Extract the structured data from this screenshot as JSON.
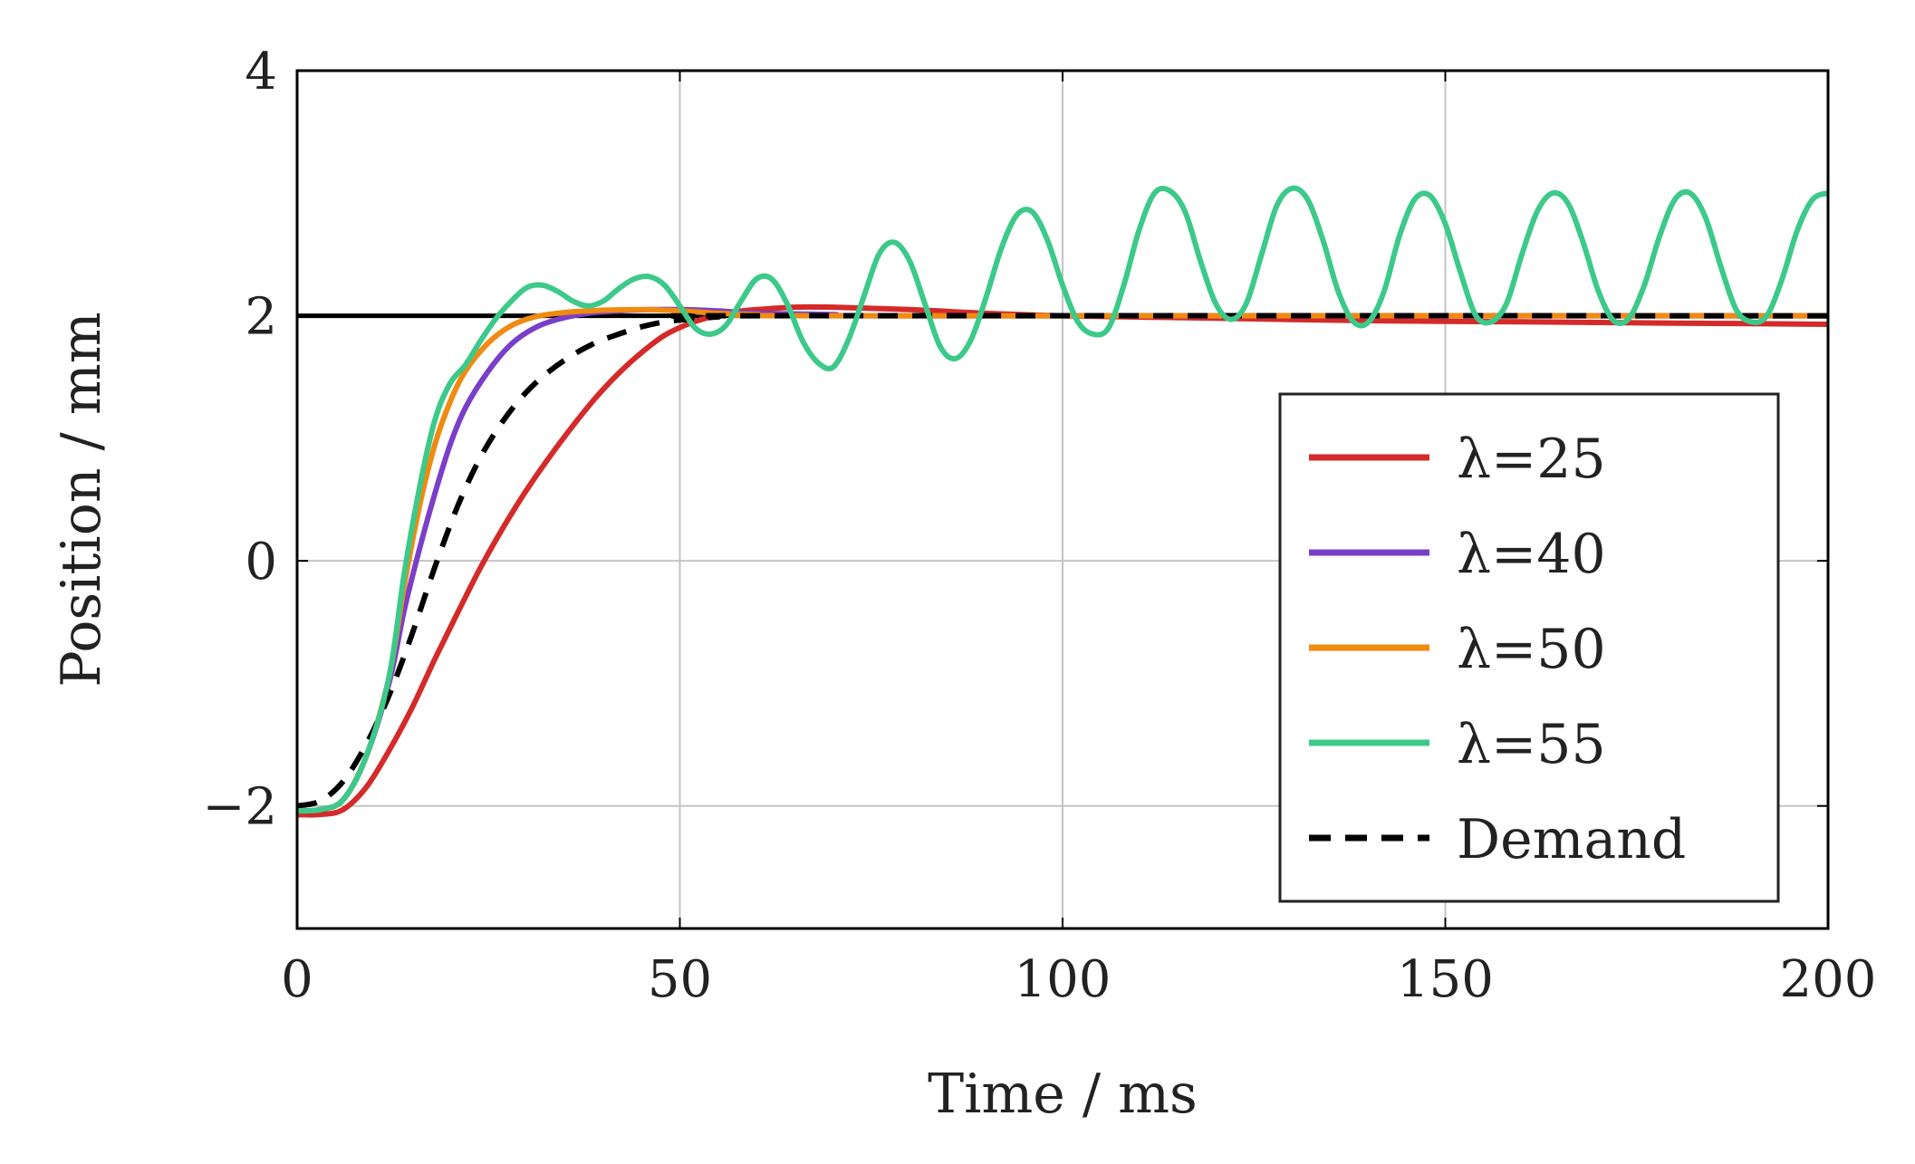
{
  "chart_data": {
    "type": "line",
    "title": "",
    "xlabel": "Time / ms",
    "ylabel": "Position / mm",
    "xlim": [
      0,
      200
    ],
    "ylim": [
      -3,
      4
    ],
    "xticks": [
      0,
      50,
      100,
      150,
      200
    ],
    "yticks": [
      -2,
      0,
      2,
      4
    ],
    "xtick_labels": [
      "0",
      "50",
      "100",
      "150",
      "200"
    ],
    "ytick_labels": [
      "−2",
      "0",
      "2",
      "4"
    ],
    "grid": true,
    "legend_position": "bottom-right",
    "reference_line": {
      "y": 2,
      "color": "#000000"
    },
    "series": [
      {
        "name": "λ=25",
        "color": "#d42a2a",
        "dash": "solid",
        "points": [
          [
            0,
            -2.07
          ],
          [
            3,
            -2.07
          ],
          [
            6,
            -2.03
          ],
          [
            9,
            -1.85
          ],
          [
            12,
            -1.55
          ],
          [
            15,
            -1.2
          ],
          [
            18,
            -0.8
          ],
          [
            21,
            -0.42
          ],
          [
            24,
            -0.05
          ],
          [
            27,
            0.28
          ],
          [
            30,
            0.58
          ],
          [
            33,
            0.85
          ],
          [
            36,
            1.1
          ],
          [
            39,
            1.33
          ],
          [
            42,
            1.53
          ],
          [
            45,
            1.7
          ],
          [
            48,
            1.84
          ],
          [
            51,
            1.93
          ],
          [
            54,
            1.99
          ],
          [
            57,
            2.03
          ],
          [
            60,
            2.05
          ],
          [
            65,
            2.07
          ],
          [
            70,
            2.07
          ],
          [
            80,
            2.05
          ],
          [
            90,
            2.02
          ],
          [
            100,
            2.0
          ],
          [
            120,
            1.98
          ],
          [
            140,
            1.96
          ],
          [
            160,
            1.95
          ],
          [
            180,
            1.94
          ],
          [
            200,
            1.93
          ]
        ]
      },
      {
        "name": "λ=40",
        "color": "#7a3fc8",
        "dash": "solid",
        "points": [
          [
            0,
            -2.04
          ],
          [
            3,
            -2.03
          ],
          [
            6,
            -1.95
          ],
          [
            9,
            -1.6
          ],
          [
            12,
            -1.0
          ],
          [
            14,
            -0.4
          ],
          [
            16,
            0.1
          ],
          [
            18,
            0.55
          ],
          [
            20,
            0.95
          ],
          [
            22,
            1.25
          ],
          [
            25,
            1.55
          ],
          [
            28,
            1.77
          ],
          [
            31,
            1.9
          ],
          [
            34,
            1.97
          ],
          [
            38,
            2.02
          ],
          [
            42,
            2.04
          ],
          [
            46,
            2.05
          ],
          [
            50,
            2.05
          ],
          [
            55,
            2.04
          ],
          [
            60,
            2.02
          ],
          [
            70,
            2.01
          ],
          [
            80,
            2.0
          ],
          [
            200,
            2.0
          ]
        ]
      },
      {
        "name": "λ=50",
        "color": "#f08a10",
        "dash": "solid",
        "points": [
          [
            0,
            -2.04
          ],
          [
            3,
            -2.03
          ],
          [
            6,
            -1.95
          ],
          [
            9,
            -1.6
          ],
          [
            12,
            -0.95
          ],
          [
            14,
            -0.2
          ],
          [
            16,
            0.45
          ],
          [
            18,
            0.95
          ],
          [
            20,
            1.3
          ],
          [
            22,
            1.55
          ],
          [
            25,
            1.78
          ],
          [
            28,
            1.92
          ],
          [
            31,
            1.99
          ],
          [
            34,
            2.02
          ],
          [
            38,
            2.04
          ],
          [
            45,
            2.05
          ],
          [
            50,
            2.04
          ],
          [
            55,
            2.02
          ],
          [
            60,
            2.01
          ],
          [
            70,
            2.0
          ],
          [
            200,
            2.0
          ]
        ]
      },
      {
        "name": "λ=55",
        "color": "#3cc98a",
        "dash": "solid",
        "points": [
          [
            0,
            -2.04
          ],
          [
            3,
            -2.03
          ],
          [
            6,
            -1.95
          ],
          [
            9,
            -1.6
          ],
          [
            12,
            -0.95
          ],
          [
            14,
            -0.1
          ],
          [
            16,
            0.6
          ],
          [
            18,
            1.15
          ],
          [
            20,
            1.45
          ],
          [
            22,
            1.6
          ],
          [
            24,
            1.8
          ],
          [
            26,
            1.98
          ],
          [
            28,
            2.12
          ],
          [
            30,
            2.23
          ],
          [
            32,
            2.25
          ],
          [
            34,
            2.2
          ],
          [
            36,
            2.12
          ],
          [
            38,
            2.08
          ],
          [
            40,
            2.12
          ],
          [
            42,
            2.22
          ],
          [
            44,
            2.3
          ],
          [
            46,
            2.32
          ],
          [
            48,
            2.25
          ],
          [
            50,
            2.08
          ],
          [
            52,
            1.9
          ],
          [
            54,
            1.85
          ],
          [
            56,
            1.92
          ],
          [
            58,
            2.12
          ],
          [
            60,
            2.3
          ],
          [
            62,
            2.3
          ],
          [
            64,
            2.1
          ],
          [
            66,
            1.8
          ],
          [
            68,
            1.62
          ],
          [
            70,
            1.58
          ],
          [
            72,
            1.8
          ],
          [
            74,
            2.15
          ],
          [
            76,
            2.5
          ],
          [
            78,
            2.6
          ],
          [
            80,
            2.45
          ],
          [
            82,
            2.1
          ],
          [
            84,
            1.75
          ],
          [
            86,
            1.65
          ],
          [
            88,
            1.8
          ],
          [
            90,
            2.15
          ],
          [
            92,
            2.55
          ],
          [
            94,
            2.82
          ],
          [
            96,
            2.85
          ],
          [
            98,
            2.62
          ],
          [
            100,
            2.25
          ],
          [
            102,
            1.95
          ],
          [
            104,
            1.85
          ],
          [
            106,
            1.9
          ],
          [
            108,
            2.25
          ],
          [
            110,
            2.7
          ],
          [
            112,
            3.0
          ],
          [
            114,
            3.02
          ],
          [
            116,
            2.85
          ],
          [
            118,
            2.45
          ],
          [
            120,
            2.1
          ],
          [
            122,
            1.97
          ],
          [
            124,
            2.1
          ],
          [
            126,
            2.5
          ],
          [
            128,
            2.9
          ],
          [
            130,
            3.04
          ],
          [
            132,
            2.95
          ],
          [
            134,
            2.62
          ],
          [
            136,
            2.2
          ],
          [
            138,
            1.95
          ],
          [
            140,
            1.95
          ],
          [
            142,
            2.2
          ],
          [
            144,
            2.65
          ],
          [
            146,
            2.95
          ],
          [
            148,
            2.98
          ],
          [
            150,
            2.75
          ],
          [
            152,
            2.35
          ],
          [
            154,
            2.0
          ],
          [
            156,
            1.95
          ],
          [
            158,
            2.1
          ],
          [
            160,
            2.5
          ],
          [
            162,
            2.85
          ],
          [
            164,
            3.0
          ],
          [
            166,
            2.92
          ],
          [
            168,
            2.6
          ],
          [
            170,
            2.2
          ],
          [
            172,
            1.96
          ],
          [
            174,
            1.98
          ],
          [
            176,
            2.25
          ],
          [
            178,
            2.65
          ],
          [
            180,
            2.95
          ],
          [
            182,
            3.0
          ],
          [
            184,
            2.8
          ],
          [
            186,
            2.4
          ],
          [
            188,
            2.05
          ],
          [
            190,
            1.95
          ],
          [
            192,
            2.0
          ],
          [
            194,
            2.3
          ],
          [
            196,
            2.7
          ],
          [
            198,
            2.95
          ],
          [
            200,
            3.0
          ]
        ]
      },
      {
        "name": "Demand",
        "color": "#000000",
        "dash": "dashed",
        "points": [
          [
            0,
            -2.0
          ],
          [
            3,
            -1.96
          ],
          [
            6,
            -1.8
          ],
          [
            9,
            -1.5
          ],
          [
            12,
            -1.1
          ],
          [
            15,
            -0.6
          ],
          [
            18,
            -0.05
          ],
          [
            21,
            0.45
          ],
          [
            24,
            0.85
          ],
          [
            27,
            1.15
          ],
          [
            30,
            1.38
          ],
          [
            33,
            1.55
          ],
          [
            36,
            1.68
          ],
          [
            39,
            1.78
          ],
          [
            42,
            1.85
          ],
          [
            45,
            1.91
          ],
          [
            48,
            1.95
          ],
          [
            51,
            1.97
          ],
          [
            55,
            1.99
          ],
          [
            60,
            2.0
          ],
          [
            200,
            2.0
          ]
        ]
      }
    ]
  }
}
